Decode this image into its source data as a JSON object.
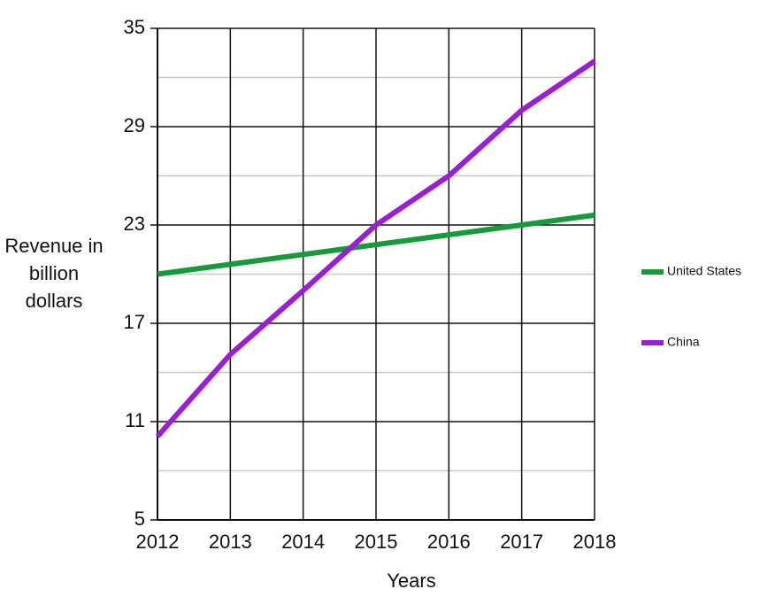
{
  "chart_data": {
    "type": "line",
    "x_label": "Years",
    "y_label": "Revenue in billion dollars",
    "x": [
      2012,
      2013,
      2014,
      2015,
      2016,
      2017,
      2018
    ],
    "series": [
      {
        "name": "United States",
        "color": "#179b3a",
        "values": [
          20,
          20.6,
          21.2,
          21.8,
          22.4,
          23,
          23.6
        ]
      },
      {
        "name": "China",
        "color": "#9a1ed6",
        "values": [
          10.1,
          15.1,
          19,
          23,
          26,
          30,
          33
        ]
      }
    ],
    "xlim": [
      2012,
      2018
    ],
    "xticks": [
      2012,
      2013,
      2014,
      2015,
      2016,
      2017,
      2018
    ],
    "ylim": [
      5,
      35
    ],
    "yticks": [
      5,
      11,
      17,
      23,
      29,
      35
    ],
    "minor_yticks": [
      8,
      14,
      20,
      26,
      32
    ],
    "grid": true,
    "legend": "right"
  }
}
